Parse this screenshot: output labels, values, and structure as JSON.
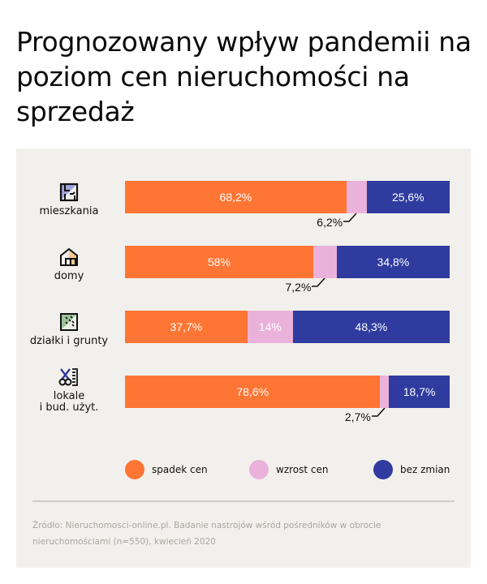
{
  "title": "Prognozowany wpływ pandemii na poziom cen nieruchomości na sprzedaż",
  "colors": {
    "spadek": "#ff7534",
    "wzrost": "#eab2da",
    "bez_zmian": "#2f3b9f",
    "card_bg": "#f2f0ec"
  },
  "chart_data": {
    "type": "bar",
    "orientation": "horizontal",
    "stacked": true,
    "title": "Prognozowany wpływ pandemii na poziom cen nieruchomości na sprzedaż",
    "xlabel": "",
    "ylabel": "",
    "xlim": [
      0,
      100
    ],
    "grid": false,
    "legend_position": "bottom",
    "categories": [
      "mieszkania",
      "domy",
      "działki i grunty",
      "lokale i bud. użyt."
    ],
    "category_labels": [
      [
        "mieszkania"
      ],
      [
        "domy"
      ],
      [
        "działki i grunty"
      ],
      [
        "lokale",
        "i bud. użyt."
      ]
    ],
    "category_icons": [
      "apartment-floorplan-icon",
      "house-icon",
      "land-plot-icon",
      "scissors-ruler-icon"
    ],
    "series": [
      {
        "key": "spadek",
        "name": "spadek cen",
        "values": [
          68.2,
          58,
          37.7,
          78.6
        ],
        "labels": [
          "68,2%",
          "58%",
          "37,7%",
          "78,6%"
        ]
      },
      {
        "key": "wzrost",
        "name": "wzrost cen",
        "values": [
          6.2,
          7.2,
          14,
          2.7
        ],
        "labels": [
          "6,2%",
          "7,2%",
          "14%",
          "2,7%"
        ],
        "label_outside": [
          true,
          true,
          false,
          true
        ]
      },
      {
        "key": "bez_zmian",
        "name": "bez zmian",
        "values": [
          25.6,
          34.8,
          48.3,
          18.7
        ],
        "labels": [
          "25,6%",
          "34,8%",
          "48,3%",
          "18,7%"
        ]
      }
    ]
  },
  "legend": [
    {
      "label": "spadek cen",
      "color": "#ff7534"
    },
    {
      "label": "wzrost cen",
      "color": "#eab2da"
    },
    {
      "label": "bez zmian",
      "color": "#2f3b9f"
    }
  ],
  "source": "Źródło: Nieruchomosci-online.pl. Badanie nastrojów wśród pośredników w obrocie nieruchomościami (n=550), kwiecień 2020"
}
